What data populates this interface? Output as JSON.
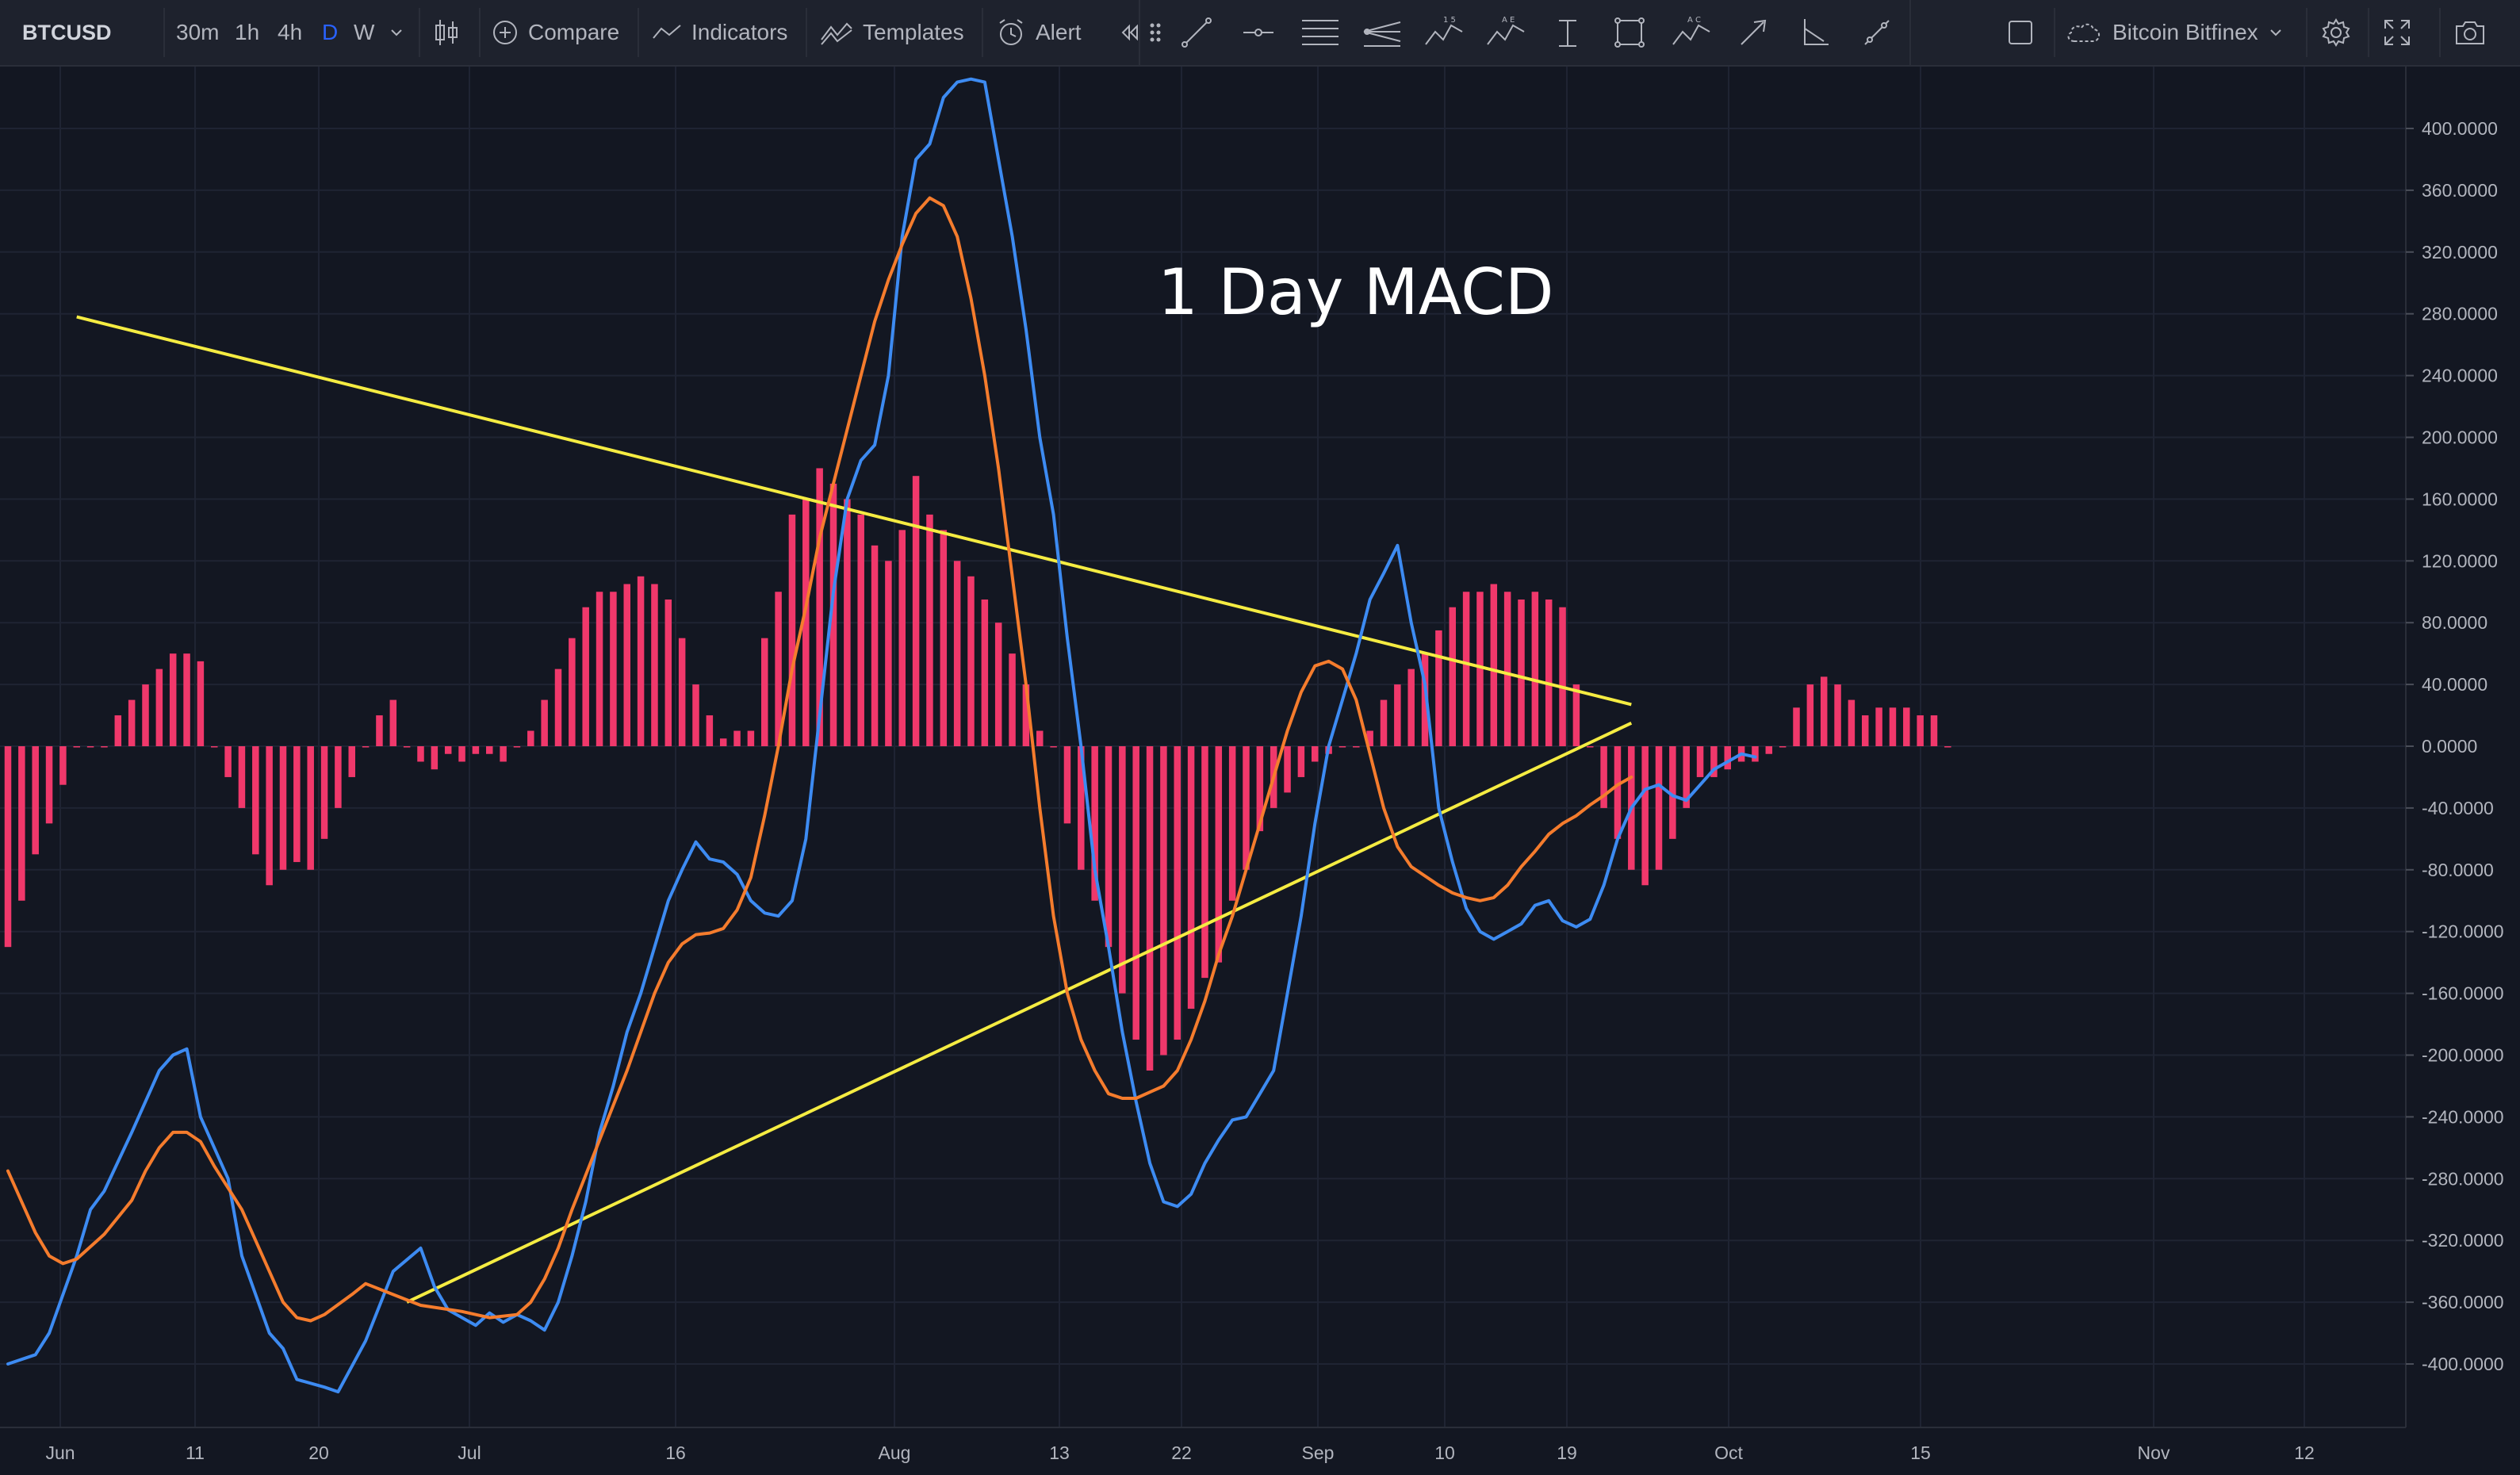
{
  "toolbar": {
    "symbol": "BTCUSD",
    "intervals": [
      "30m",
      "1h",
      "4h",
      "D",
      "W"
    ],
    "active_interval": "D",
    "compare_label": "Compare",
    "indicators_label": "Indicators",
    "templates_label": "Templates",
    "alert_label": "Alert",
    "exchange_label": "Bitcoin Bitfinex",
    "drawing_tools": [
      "trend-line-icon",
      "horizontal-ray-icon",
      "parallel-channel-icon",
      "pitchfork-icon",
      "xabcd-pattern-icon",
      "elliott-wave-icon",
      "date-range-icon",
      "rectangle-icon",
      "abcd-pattern-icon",
      "arrow-icon",
      "angle-icon",
      "measure-icon"
    ]
  },
  "colors": {
    "background": "#131722",
    "grid": "#1f2433",
    "macd_line": "#3d8bf2",
    "signal_line": "#f57c2d",
    "histogram": "#f0386b",
    "trendline": "#f5ec42",
    "text": "#b2b5be"
  },
  "annotation": {
    "title": "1 Day MACD"
  },
  "chart_data": {
    "type": "line",
    "title": "",
    "price_axis_ticks": [
      "400.0000",
      "360.0000",
      "320.0000",
      "280.0000",
      "240.0000",
      "200.0000",
      "160.0000",
      "120.0000",
      "80.0000",
      "40.0000",
      "0.0000",
      "-40.0000",
      "-80.0000",
      "-120.0000",
      "-160.0000",
      "-200.0000",
      "-240.0000",
      "-280.0000",
      "-320.0000",
      "-360.0000",
      "-400.0000"
    ],
    "ylim": [
      -440,
      440
    ],
    "time_axis_ticks": [
      "Jun",
      "11",
      "20",
      "Jul",
      "16",
      "Aug",
      "13",
      "22",
      "Sep",
      "10",
      "19",
      "Oct",
      "15",
      "Nov",
      "12"
    ],
    "x_day_range": [
      0,
      180
    ],
    "series": [
      {
        "name": "MACD",
        "points": [
          [
            0,
            -400
          ],
          [
            2,
            -394
          ],
          [
            3,
            -380
          ],
          [
            5,
            -330
          ],
          [
            6,
            -300
          ],
          [
            7,
            -288
          ],
          [
            9,
            -250
          ],
          [
            11,
            -210
          ],
          [
            12,
            -200
          ],
          [
            13,
            -196
          ],
          [
            14,
            -240
          ],
          [
            16,
            -280
          ],
          [
            17,
            -330
          ],
          [
            19,
            -380
          ],
          [
            20,
            -390
          ],
          [
            21,
            -410
          ],
          [
            23,
            -415
          ],
          [
            24,
            -418
          ],
          [
            26,
            -385
          ],
          [
            28,
            -340
          ],
          [
            30,
            -325
          ],
          [
            31,
            -350
          ],
          [
            32,
            -365
          ],
          [
            34,
            -375
          ],
          [
            35,
            -367
          ],
          [
            36,
            -373
          ],
          [
            37,
            -368
          ],
          [
            38,
            -372
          ],
          [
            39,
            -378
          ],
          [
            40,
            -360
          ],
          [
            41,
            -330
          ],
          [
            42,
            -295
          ],
          [
            43,
            -250
          ],
          [
            44,
            -220
          ],
          [
            45,
            -185
          ],
          [
            46,
            -160
          ],
          [
            47,
            -130
          ],
          [
            48,
            -100
          ],
          [
            49,
            -80
          ],
          [
            50,
            -62
          ],
          [
            51,
            -73
          ],
          [
            52,
            -75
          ],
          [
            53,
            -83
          ],
          [
            54,
            -100
          ],
          [
            55,
            -108
          ],
          [
            56,
            -110
          ],
          [
            57,
            -100
          ],
          [
            58,
            -60
          ],
          [
            59,
            20
          ],
          [
            60,
            100
          ],
          [
            61,
            160
          ],
          [
            62,
            185
          ],
          [
            63,
            195
          ],
          [
            64,
            240
          ],
          [
            65,
            330
          ],
          [
            66,
            380
          ],
          [
            67,
            390
          ],
          [
            68,
            420
          ],
          [
            69,
            430
          ],
          [
            70,
            432
          ],
          [
            71,
            430
          ],
          [
            72,
            380
          ],
          [
            73,
            330
          ],
          [
            74,
            270
          ],
          [
            75,
            200
          ],
          [
            76,
            150
          ],
          [
            77,
            70
          ],
          [
            78,
            0
          ],
          [
            79,
            -80
          ],
          [
            80,
            -130
          ],
          [
            81,
            -185
          ],
          [
            82,
            -230
          ],
          [
            83,
            -270
          ],
          [
            84,
            -295
          ],
          [
            85,
            -298
          ],
          [
            86,
            -290
          ],
          [
            87,
            -270
          ],
          [
            88,
            -255
          ],
          [
            89,
            -242
          ],
          [
            90,
            -240
          ],
          [
            91,
            -225
          ],
          [
            92,
            -210
          ],
          [
            93,
            -160
          ],
          [
            94,
            -110
          ],
          [
            95,
            -50
          ],
          [
            96,
            0
          ],
          [
            97,
            30
          ],
          [
            98,
            60
          ],
          [
            99,
            95
          ],
          [
            100,
            112
          ],
          [
            101,
            130
          ],
          [
            102,
            80
          ],
          [
            103,
            40
          ],
          [
            104,
            -40
          ],
          [
            105,
            -75
          ],
          [
            106,
            -105
          ],
          [
            107,
            -120
          ],
          [
            108,
            -125
          ],
          [
            109,
            -120
          ],
          [
            110,
            -115
          ],
          [
            111,
            -103
          ],
          [
            112,
            -100
          ],
          [
            113,
            -113
          ],
          [
            114,
            -117
          ],
          [
            115,
            -112
          ],
          [
            116,
            -90
          ],
          [
            117,
            -60
          ],
          [
            118,
            -40
          ],
          [
            119,
            -28
          ],
          [
            120,
            -25
          ],
          [
            121,
            -32
          ],
          [
            122,
            -35
          ],
          [
            123,
            -25
          ],
          [
            124,
            -15
          ],
          [
            125,
            -10
          ],
          [
            126,
            -5
          ],
          [
            127,
            -7
          ]
        ]
      },
      {
        "name": "Signal",
        "points": [
          [
            0,
            -275
          ],
          [
            2,
            -315
          ],
          [
            3,
            -330
          ],
          [
            4,
            -335
          ],
          [
            5,
            -332
          ],
          [
            7,
            -316
          ],
          [
            9,
            -294
          ],
          [
            10,
            -275
          ],
          [
            11,
            -260
          ],
          [
            12,
            -250
          ],
          [
            13,
            -250
          ],
          [
            14,
            -256
          ],
          [
            15,
            -272
          ],
          [
            17,
            -300
          ],
          [
            19,
            -340
          ],
          [
            20,
            -360
          ],
          [
            21,
            -370
          ],
          [
            22,
            -372
          ],
          [
            23,
            -368
          ],
          [
            25,
            -355
          ],
          [
            26,
            -348
          ],
          [
            28,
            -355
          ],
          [
            30,
            -362
          ],
          [
            33,
            -366
          ],
          [
            35,
            -370
          ],
          [
            37,
            -368
          ],
          [
            38,
            -360
          ],
          [
            39,
            -345
          ],
          [
            40,
            -325
          ],
          [
            41,
            -300
          ],
          [
            43,
            -255
          ],
          [
            45,
            -210
          ],
          [
            47,
            -160
          ],
          [
            48,
            -140
          ],
          [
            49,
            -128
          ],
          [
            50,
            -122
          ],
          [
            51,
            -121
          ],
          [
            52,
            -118
          ],
          [
            53,
            -106
          ],
          [
            54,
            -85
          ],
          [
            55,
            -45
          ],
          [
            56,
            0
          ],
          [
            57,
            50
          ],
          [
            58,
            90
          ],
          [
            59,
            135
          ],
          [
            60,
            170
          ],
          [
            61,
            205
          ],
          [
            62,
            240
          ],
          [
            63,
            275
          ],
          [
            64,
            302
          ],
          [
            65,
            325
          ],
          [
            66,
            345
          ],
          [
            67,
            355
          ],
          [
            68,
            350
          ],
          [
            69,
            330
          ],
          [
            70,
            290
          ],
          [
            71,
            240
          ],
          [
            72,
            180
          ],
          [
            73,
            110
          ],
          [
            74,
            40
          ],
          [
            75,
            -40
          ],
          [
            76,
            -110
          ],
          [
            77,
            -160
          ],
          [
            78,
            -190
          ],
          [
            79,
            -210
          ],
          [
            80,
            -225
          ],
          [
            81,
            -228
          ],
          [
            82,
            -228
          ],
          [
            83,
            -224
          ],
          [
            84,
            -220
          ],
          [
            85,
            -210
          ],
          [
            86,
            -190
          ],
          [
            87,
            -165
          ],
          [
            88,
            -135
          ],
          [
            89,
            -110
          ],
          [
            90,
            -80
          ],
          [
            91,
            -50
          ],
          [
            92,
            -20
          ],
          [
            93,
            10
          ],
          [
            94,
            35
          ],
          [
            95,
            52
          ],
          [
            96,
            55
          ],
          [
            97,
            50
          ],
          [
            98,
            30
          ],
          [
            99,
            -5
          ],
          [
            100,
            -40
          ],
          [
            101,
            -65
          ],
          [
            102,
            -78
          ],
          [
            103,
            -84
          ],
          [
            104,
            -90
          ],
          [
            105,
            -95
          ],
          [
            106,
            -98
          ],
          [
            107,
            -100
          ],
          [
            108,
            -98
          ],
          [
            109,
            -90
          ],
          [
            110,
            -78
          ],
          [
            111,
            -68
          ],
          [
            112,
            -57
          ],
          [
            113,
            -50
          ],
          [
            114,
            -45
          ],
          [
            115,
            -38
          ],
          [
            116,
            -32
          ],
          [
            117,
            -25
          ],
          [
            118,
            -20
          ]
        ]
      }
    ],
    "histogram": {
      "name": "Histogram",
      "values": [
        -130,
        -100,
        -70,
        -50,
        -25,
        0,
        0,
        0,
        20,
        30,
        40,
        50,
        60,
        60,
        55,
        0,
        -20,
        -40,
        -70,
        -90,
        -80,
        -75,
        -80,
        -60,
        -40,
        -20,
        0,
        20,
        30,
        0,
        -10,
        -15,
        -5,
        -10,
        -5,
        -5,
        -10,
        0,
        10,
        30,
        50,
        70,
        90,
        100,
        100,
        105,
        110,
        105,
        95,
        70,
        40,
        20,
        5,
        10,
        10,
        70,
        100,
        150,
        160,
        180,
        170,
        160,
        150,
        130,
        120,
        140,
        175,
        150,
        140,
        120,
        110,
        95,
        80,
        60,
        40,
        10,
        0,
        -50,
        -80,
        -100,
        -130,
        -160,
        -190,
        -210,
        -200,
        -190,
        -170,
        -150,
        -140,
        -100,
        -80,
        -55,
        -40,
        -30,
        -20,
        -10,
        -5,
        0,
        0,
        10,
        30,
        40,
        50,
        60,
        75,
        90,
        100,
        100,
        105,
        100,
        95,
        100,
        95,
        90,
        40,
        0,
        -40,
        -60,
        -80,
        -90,
        -80,
        -60,
        -40,
        -20,
        -20,
        -15,
        -10,
        -10,
        -5,
        0,
        25,
        40,
        45,
        40,
        30,
        20,
        25,
        25,
        25,
        20,
        20,
        0
      ]
    },
    "trendlines": [
      {
        "name": "upper-resistance",
        "from": [
          5,
          278
        ],
        "to": [
          118,
          27
        ]
      },
      {
        "name": "lower-support",
        "from": [
          29,
          -360
        ],
        "to": [
          118,
          15
        ]
      }
    ]
  }
}
